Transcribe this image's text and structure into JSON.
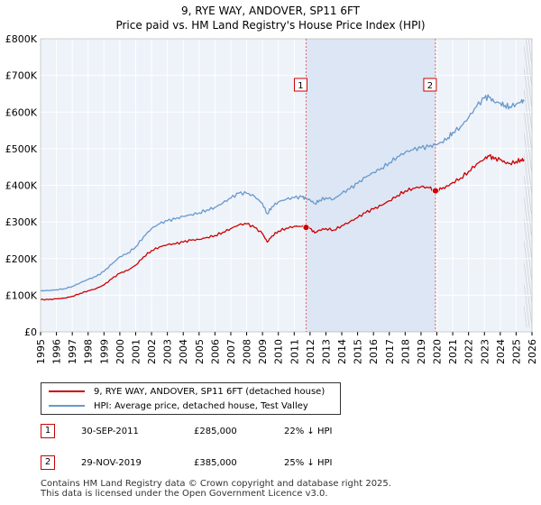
{
  "chart_data": {
    "type": "line",
    "title": "9, RYE WAY, ANDOVER, SP11 6FT",
    "subtitle": "Price paid vs. HM Land Registry's House Price Index (HPI)",
    "xlabel": "",
    "ylabel": "",
    "xlim": [
      1995,
      2026
    ],
    "ylim": [
      0,
      800000
    ],
    "yticks": [
      0,
      100000,
      200000,
      300000,
      400000,
      500000,
      600000,
      700000,
      800000
    ],
    "ytick_labels": [
      "£0",
      "£100K",
      "£200K",
      "£300K",
      "£400K",
      "£500K",
      "£600K",
      "£700K",
      "£800K"
    ],
    "xtick_labels": [
      "1995",
      "1996",
      "1997",
      "1998",
      "1999",
      "2000",
      "2001",
      "2002",
      "2003",
      "2004",
      "2005",
      "2006",
      "2007",
      "2008",
      "2009",
      "2010",
      "2011",
      "2012",
      "2013",
      "2014",
      "2015",
      "2016",
      "2017",
      "2018",
      "2019",
      "2020",
      "2021",
      "2022",
      "2023",
      "2024",
      "2025",
      "2026"
    ],
    "grid": true,
    "shaded_periods": [
      [
        2011.75,
        2019.91
      ]
    ],
    "series": [
      {
        "name": "9, RYE WAY, ANDOVER, SP11 6FT (detached house)",
        "color": "#cc0000",
        "x": [
          1995.0,
          1995.5,
          1996.0,
          1996.5,
          1997.0,
          1997.5,
          1998.0,
          1998.5,
          1999.0,
          1999.5,
          2000.0,
          2000.5,
          2001.0,
          2001.5,
          2002.0,
          2002.5,
          2003.0,
          2003.5,
          2004.0,
          2004.5,
          2005.0,
          2005.5,
          2006.0,
          2006.5,
          2007.0,
          2007.5,
          2008.0,
          2008.5,
          2009.0,
          2009.3,
          2009.6,
          2010.0,
          2010.5,
          2011.0,
          2011.5,
          2011.75,
          2012.0,
          2012.3,
          2012.6,
          2013.0,
          2013.5,
          2014.0,
          2014.5,
          2015.0,
          2015.5,
          2016.0,
          2016.5,
          2017.0,
          2017.5,
          2018.0,
          2018.5,
          2019.0,
          2019.5,
          2019.91,
          2020.3,
          2020.7,
          2021.0,
          2021.5,
          2022.0,
          2022.5,
          2023.0,
          2023.3,
          2023.6,
          2024.0,
          2024.3,
          2024.6,
          2025.0,
          2025.3,
          2025.5
        ],
        "y": [
          88000,
          88000,
          90000,
          92000,
          97000,
          105000,
          112000,
          118000,
          128000,
          145000,
          160000,
          168000,
          182000,
          205000,
          222000,
          232000,
          238000,
          240000,
          245000,
          250000,
          252000,
          258000,
          263000,
          272000,
          282000,
          292000,
          295000,
          285000,
          268000,
          245000,
          262000,
          275000,
          283000,
          288000,
          288000,
          285000,
          282000,
          270000,
          278000,
          282000,
          278000,
          290000,
          300000,
          312000,
          325000,
          335000,
          345000,
          358000,
          372000,
          385000,
          392000,
          396000,
          393000,
          385000,
          390000,
          398000,
          408000,
          420000,
          438000,
          458000,
          472000,
          480000,
          472000,
          470000,
          462000,
          460000,
          465000,
          470000,
          470000
        ]
      },
      {
        "name": "HPI: Average price, detached house, Test Valley",
        "color": "#6699cc",
        "x": [
          1995.0,
          1995.5,
          1996.0,
          1996.5,
          1997.0,
          1997.5,
          1998.0,
          1998.5,
          1999.0,
          1999.5,
          2000.0,
          2000.5,
          2001.0,
          2001.5,
          2002.0,
          2002.5,
          2003.0,
          2003.5,
          2004.0,
          2004.5,
          2005.0,
          2005.5,
          2006.0,
          2006.5,
          2007.0,
          2007.5,
          2008.0,
          2008.5,
          2009.0,
          2009.3,
          2009.6,
          2010.0,
          2010.5,
          2011.0,
          2011.5,
          2011.75,
          2012.0,
          2012.3,
          2012.6,
          2013.0,
          2013.5,
          2014.0,
          2014.5,
          2015.0,
          2015.5,
          2016.0,
          2016.5,
          2017.0,
          2017.5,
          2018.0,
          2018.5,
          2019.0,
          2019.5,
          2019.91,
          2020.3,
          2020.7,
          2021.0,
          2021.5,
          2022.0,
          2022.5,
          2023.0,
          2023.3,
          2023.6,
          2024.0,
          2024.3,
          2024.6,
          2025.0,
          2025.3,
          2025.5
        ],
        "y": [
          112000,
          113000,
          115000,
          118000,
          124000,
          134000,
          143000,
          151000,
          165000,
          185000,
          205000,
          215000,
          232000,
          260000,
          282000,
          295000,
          303000,
          308000,
          315000,
          320000,
          325000,
          333000,
          340000,
          352000,
          365000,
          378000,
          378000,
          370000,
          350000,
          322000,
          342000,
          355000,
          362000,
          366000,
          368000,
          363000,
          360000,
          350000,
          360000,
          366000,
          362000,
          378000,
          390000,
          405000,
          422000,
          435000,
          447000,
          462000,
          478000,
          490000,
          497000,
          502000,
          505000,
          510000,
          518000,
          530000,
          545000,
          560000,
          585000,
          615000,
          638000,
          640000,
          628000,
          625000,
          618000,
          615000,
          622000,
          628000,
          630000
        ]
      }
    ],
    "annotations": [
      {
        "label": "1",
        "date": "30-SEP-2011",
        "x": 2011.75,
        "price": 285000
      },
      {
        "label": "2",
        "date": "29-NOV-2019",
        "x": 2019.91,
        "price": 385000
      }
    ]
  },
  "legend": {
    "property_label": "9, RYE WAY, ANDOVER, SP11 6FT (detached house)",
    "hpi_label": "HPI: Average price, detached house, Test Valley"
  },
  "sales": [
    {
      "num": "1",
      "date": "30-SEP-2011",
      "price": "£285,000",
      "hpi": "22% ↓ HPI"
    },
    {
      "num": "2",
      "date": "29-NOV-2019",
      "price": "£385,000",
      "hpi": "25% ↓ HPI"
    }
  ],
  "footer": {
    "line1": "Contains HM Land Registry data © Crown copyright and database right 2025.",
    "line2": "This data is licensed under the Open Government Licence v3.0."
  }
}
